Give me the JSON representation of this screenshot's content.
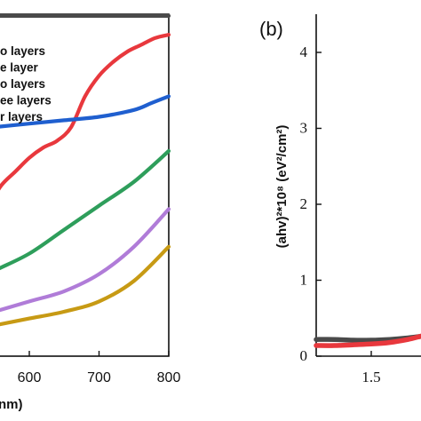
{
  "chart_data": [
    {
      "type": "line",
      "xlabel": "nm)",
      "xticks": [
        "600",
        "700",
        "800"
      ],
      "xlim": [
        500,
        800
      ],
      "ylim": [
        0,
        1
      ],
      "legend_position": "top-left",
      "series": [
        {
          "name": "o layers",
          "color": "#4a4a4a",
          "x": [
            500,
            600,
            700,
            800
          ],
          "y": [
            0.995,
            0.995,
            0.995,
            0.995
          ]
        },
        {
          "name": "e layer",
          "color": "#e8383d",
          "x": [
            500,
            540,
            560,
            580,
            600,
            620,
            640,
            660,
            680,
            700,
            720,
            740,
            760,
            780,
            800
          ],
          "y": [
            0.36,
            0.44,
            0.5,
            0.54,
            0.58,
            0.61,
            0.63,
            0.67,
            0.76,
            0.82,
            0.86,
            0.89,
            0.91,
            0.93,
            0.94
          ]
        },
        {
          "name": "o layers",
          "color": "#1f5fcf",
          "x": [
            500,
            550,
            600,
            650,
            700,
            750,
            775,
            800
          ],
          "y": [
            0.66,
            0.67,
            0.68,
            0.69,
            0.7,
            0.72,
            0.74,
            0.76
          ]
        },
        {
          "name": "ee layers",
          "color": "#2e9e5b",
          "x": [
            500,
            550,
            600,
            650,
            700,
            750,
            800
          ],
          "y": [
            0.2,
            0.25,
            0.3,
            0.37,
            0.44,
            0.51,
            0.6
          ]
        },
        {
          "name": "r layers",
          "color": "#b07cd8",
          "x": [
            500,
            550,
            600,
            650,
            700,
            750,
            800
          ],
          "y": [
            0.1,
            0.13,
            0.16,
            0.19,
            0.24,
            0.32,
            0.43
          ]
        },
        {
          "name": "",
          "color": "#c79a14",
          "x": [
            500,
            550,
            600,
            650,
            700,
            750,
            800
          ],
          "y": [
            0.07,
            0.09,
            0.11,
            0.13,
            0.16,
            0.22,
            0.32
          ]
        }
      ]
    },
    {
      "type": "line",
      "panel_label": "(b)",
      "ylabel": "(ahv)²*10⁸ (eV²/cm²)",
      "xticks": [
        "1.5"
      ],
      "yticks": [
        "0",
        "1",
        "2",
        "3",
        "4"
      ],
      "xlim": [
        1.2,
        1.9
      ],
      "ylim": [
        0,
        4.5
      ],
      "series": [
        {
          "name": "",
          "color": "#4a4a4a",
          "x": [
            1.2,
            1.3,
            1.4,
            1.5,
            1.6,
            1.7,
            1.8,
            1.9
          ],
          "y": [
            0.22,
            0.22,
            0.21,
            0.21,
            0.22,
            0.24,
            0.27,
            0.3
          ]
        },
        {
          "name": "",
          "color": "#e8383d",
          "x": [
            1.2,
            1.3,
            1.4,
            1.5,
            1.6,
            1.7,
            1.8,
            1.9
          ],
          "y": [
            0.14,
            0.14,
            0.15,
            0.16,
            0.18,
            0.22,
            0.28,
            0.32
          ]
        }
      ]
    }
  ]
}
